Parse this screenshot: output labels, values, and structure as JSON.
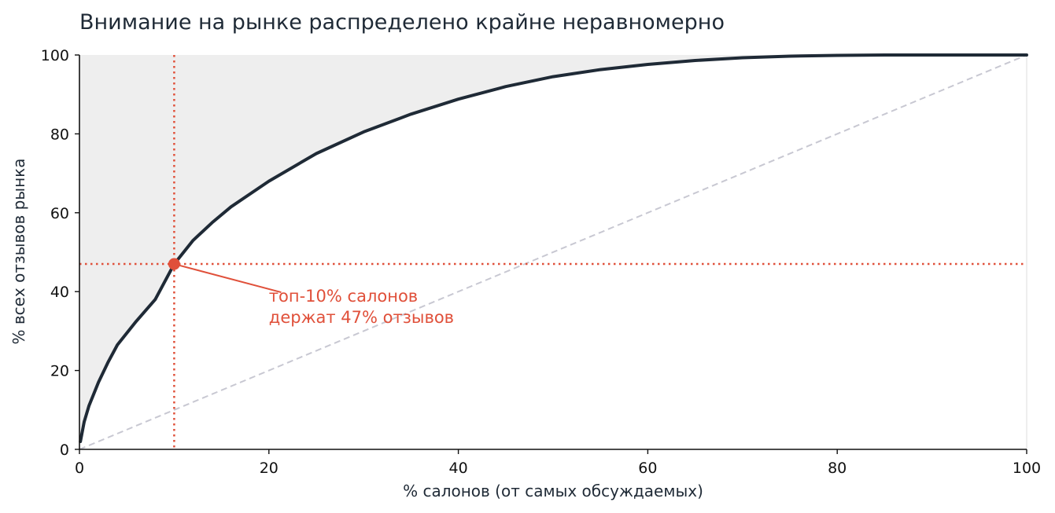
{
  "chart_data": {
    "type": "line",
    "title": "Внимание на рынке распределено крайне неравномерно",
    "xlabel": "% салонов (от самых обсуждаемых)",
    "ylabel": "% всех отзывов рынка",
    "xlim": [
      0,
      100
    ],
    "ylim": [
      0,
      100
    ],
    "xticks": [
      "0",
      "20",
      "40",
      "60",
      "80",
      "100"
    ],
    "yticks": [
      "0",
      "20",
      "40",
      "60",
      "80",
      "100"
    ],
    "grid": false,
    "series": [
      {
        "color": "#1f2a36",
        "x": [
          0.1,
          0.5,
          1,
          2,
          3,
          4,
          6,
          8,
          10,
          12,
          14,
          16,
          20,
          25,
          30,
          35,
          40,
          45,
          50,
          55,
          60,
          65,
          70,
          75,
          80,
          85,
          90,
          95,
          100
        ],
        "y": [
          2,
          7,
          11,
          17,
          22,
          26.5,
          32.5,
          38,
          47,
          53,
          57.5,
          61.5,
          68,
          75,
          80.5,
          85,
          88.8,
          92,
          94.5,
          96.3,
          97.6,
          98.6,
          99.3,
          99.7,
          99.9,
          100,
          100,
          100,
          100
        ]
      }
    ],
    "reference_line": {
      "x": [
        0,
        100
      ],
      "y": [
        0,
        100
      ],
      "color": "#c8c8d2",
      "style": "dashed"
    },
    "area_fill": "#eeeeee",
    "highlight": {
      "x": 10,
      "y": 47,
      "color": "#e0503a",
      "label_lines": [
        "топ-10% салонов",
        "держат 47% отзывов"
      ],
      "label_x": 20,
      "label_y": 37.5
    }
  }
}
